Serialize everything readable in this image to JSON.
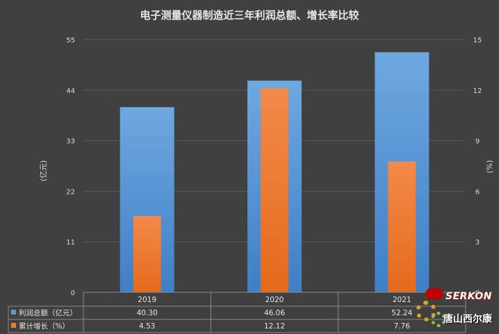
{
  "chart_data": {
    "type": "bar",
    "title": "电子测量仪器制造近三年利润总额、增长率比较",
    "categories": [
      "2019",
      "2020",
      "2021"
    ],
    "series": [
      {
        "name": "利润总额（亿元）",
        "axis": "left",
        "color": "#5b9bd5",
        "values": [
          40.3,
          46.06,
          52.24
        ],
        "display": [
          "40.30",
          "46.06",
          "52.24"
        ]
      },
      {
        "name": "累计增长（%）",
        "axis": "right",
        "color": "#ed7d31",
        "values": [
          4.53,
          12.12,
          7.76
        ],
        "display": [
          "4.53",
          "12.12",
          "7.76"
        ]
      }
    ],
    "ylabel": "(亿元)",
    "y2label": "(%)",
    "ylim": [
      0,
      55
    ],
    "y2lim": [
      0,
      15
    ],
    "yticks": [
      "0",
      "11",
      "22",
      "33",
      "44",
      "55"
    ],
    "y2ticks": [
      "0",
      "3",
      "6",
      "9",
      "12",
      "15"
    ],
    "grid": true,
    "legend": "data-table"
  },
  "watermark": {
    "brand": "SERKON",
    "sub": "唐山西尔康"
  }
}
